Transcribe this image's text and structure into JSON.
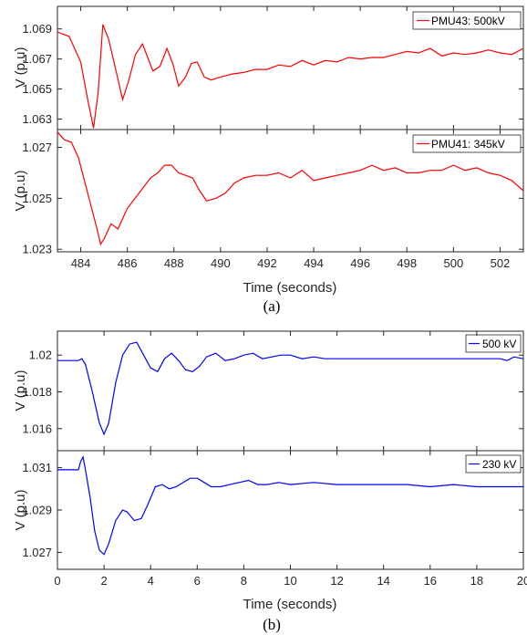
{
  "figure_a": {
    "panel_label": "(a)",
    "xlabel": "Time (seconds)",
    "xticks": [
      "484",
      "486",
      "488",
      "490",
      "492",
      "494",
      "496",
      "498",
      "500",
      "502"
    ]
  },
  "figure_b": {
    "panel_label": "(b)",
    "xlabel": "Time (seconds)",
    "xticks": [
      "0",
      "2",
      "4",
      "6",
      "8",
      "10",
      "12",
      "14",
      "16",
      "18",
      "20"
    ]
  },
  "colors": {
    "series_a": "#ff0000",
    "series_b": "#0000ff",
    "axis": "#262626"
  },
  "chart_data": [
    {
      "type": "line",
      "legend": "top-right",
      "grid": false,
      "xlabel": "",
      "ylabel": "V (p.u)",
      "xlim": [
        483,
        503
      ],
      "ylim": [
        1.0623,
        1.0705
      ],
      "yticks": [
        "1.069",
        "1.067",
        "1.065",
        "1.063"
      ],
      "series": [
        {
          "name": "PMU43: 500kV",
          "x": [
            483.0,
            483.5,
            484.0,
            484.3,
            484.55,
            484.75,
            484.95,
            485.2,
            485.5,
            485.8,
            486.05,
            486.35,
            486.65,
            486.9,
            487.1,
            487.4,
            487.7,
            487.95,
            488.2,
            488.5,
            488.75,
            489.0,
            489.3,
            489.6,
            490.0,
            490.5,
            491.0,
            491.5,
            492.0,
            492.5,
            493.0,
            493.5,
            494.0,
            494.5,
            495.0,
            495.5,
            496.0,
            496.5,
            497.0,
            497.5,
            498.0,
            498.5,
            499.0,
            499.5,
            500.0,
            500.5,
            501.0,
            501.5,
            502.0,
            502.5,
            503.0
          ],
          "y": [
            1.0688,
            1.0685,
            1.0668,
            1.0643,
            1.0624,
            1.0648,
            1.0693,
            1.0683,
            1.0663,
            1.0643,
            1.0655,
            1.0673,
            1.068,
            1.067,
            1.0662,
            1.0665,
            1.0677,
            1.0667,
            1.0652,
            1.0658,
            1.0667,
            1.0668,
            1.0658,
            1.0656,
            1.0658,
            1.066,
            1.0661,
            1.0663,
            1.0663,
            1.0666,
            1.0665,
            1.0669,
            1.0666,
            1.0669,
            1.0668,
            1.0671,
            1.067,
            1.0671,
            1.0671,
            1.0673,
            1.0675,
            1.0674,
            1.0677,
            1.0672,
            1.0674,
            1.0673,
            1.0674,
            1.0676,
            1.0674,
            1.0673,
            1.0677
          ]
        }
      ]
    },
    {
      "type": "line",
      "legend": "top-right",
      "grid": false,
      "xlabel": "Time (seconds)",
      "ylabel": "V (p.u)",
      "xlim": [
        483,
        503
      ],
      "ylim": [
        1.0229,
        1.0277
      ],
      "yticks": [
        "1.027",
        "1.025",
        "1.023"
      ],
      "series": [
        {
          "name": "PMU41: 345kV",
          "x": [
            483.0,
            483.3,
            483.6,
            483.9,
            484.1,
            484.3,
            484.5,
            484.7,
            484.85,
            485.0,
            485.3,
            485.6,
            486.0,
            486.5,
            487.0,
            487.3,
            487.6,
            487.9,
            488.2,
            488.5,
            488.8,
            489.1,
            489.4,
            489.8,
            490.2,
            490.6,
            491.0,
            491.5,
            492.0,
            492.5,
            493.0,
            493.5,
            494.0,
            494.5,
            495.0,
            495.5,
            496.0,
            496.5,
            497.0,
            497.5,
            498.0,
            498.5,
            499.0,
            499.5,
            500.0,
            500.5,
            501.0,
            501.5,
            502.0,
            502.5,
            503.0
          ],
          "y": [
            1.0276,
            1.0273,
            1.0272,
            1.0266,
            1.0259,
            1.0252,
            1.0245,
            1.0238,
            1.0232,
            1.0234,
            1.024,
            1.0238,
            1.0246,
            1.0252,
            1.0258,
            1.026,
            1.0263,
            1.0263,
            1.026,
            1.0259,
            1.0258,
            1.0253,
            1.0249,
            1.025,
            1.0252,
            1.0256,
            1.0258,
            1.0259,
            1.0259,
            1.026,
            1.0258,
            1.0261,
            1.0257,
            1.0258,
            1.0259,
            1.026,
            1.0261,
            1.0263,
            1.0261,
            1.0262,
            1.026,
            1.026,
            1.0261,
            1.0261,
            1.0263,
            1.0261,
            1.0262,
            1.026,
            1.0259,
            1.0257,
            1.0253
          ]
        }
      ]
    },
    {
      "type": "line",
      "legend": "top-right",
      "grid": false,
      "xlabel": "",
      "ylabel": "V (p.u)",
      "xlim": [
        0,
        20
      ],
      "ylim": [
        1.0148,
        1.0213
      ],
      "yticks": [
        "1.02",
        "1.018",
        "1.016"
      ],
      "series": [
        {
          "name": "500 kV",
          "x": [
            0,
            0.9,
            1.05,
            1.2,
            1.5,
            1.8,
            2.0,
            2.2,
            2.5,
            2.8,
            3.1,
            3.4,
            3.7,
            4.0,
            4.3,
            4.6,
            4.9,
            5.2,
            5.5,
            5.8,
            6.1,
            6.4,
            6.8,
            7.2,
            7.6,
            8.0,
            8.4,
            8.8,
            9.2,
            9.6,
            10.0,
            10.5,
            11.0,
            11.5,
            12.0,
            14.0,
            16.0,
            18.0,
            19.0,
            19.3,
            19.6,
            20.0
          ],
          "y": [
            1.0197,
            1.0197,
            1.0198,
            1.0195,
            1.018,
            1.0163,
            1.0157,
            1.0163,
            1.0185,
            1.02,
            1.0206,
            1.0207,
            1.02,
            1.0193,
            1.0191,
            1.0198,
            1.0201,
            1.0197,
            1.0192,
            1.0191,
            1.0194,
            1.0199,
            1.0201,
            1.0197,
            1.0198,
            1.02,
            1.0201,
            1.0198,
            1.0199,
            1.02,
            1.02,
            1.0198,
            1.0199,
            1.0198,
            1.0198,
            1.0198,
            1.0198,
            1.0198,
            1.0198,
            1.0197,
            1.0199,
            1.0198
          ]
        }
      ]
    },
    {
      "type": "line",
      "legend": "top-right",
      "grid": false,
      "xlabel": "Time (seconds)",
      "ylabel": "V (p.u)",
      "xlim": [
        0,
        20
      ],
      "ylim": [
        1.0262,
        1.0318
      ],
      "yticks": [
        "1.031",
        "1.029",
        "1.027"
      ],
      "series": [
        {
          "name": "230 kV",
          "x": [
            0,
            0.9,
            1.0,
            1.1,
            1.2,
            1.4,
            1.6,
            1.8,
            2.0,
            2.2,
            2.5,
            2.8,
            3.0,
            3.3,
            3.6,
            3.9,
            4.2,
            4.5,
            4.8,
            5.1,
            5.4,
            5.7,
            6.0,
            6.3,
            6.6,
            7.0,
            7.4,
            7.8,
            8.2,
            8.6,
            9.0,
            9.5,
            10.0,
            11.0,
            12.0,
            14.0,
            15.0,
            16.0,
            17.0,
            18.0,
            20.0
          ],
          "y": [
            1.0309,
            1.0309,
            1.0313,
            1.0315,
            1.0309,
            1.0296,
            1.028,
            1.0271,
            1.0269,
            1.0274,
            1.0285,
            1.029,
            1.0289,
            1.0285,
            1.0286,
            1.0293,
            1.0301,
            1.0302,
            1.03,
            1.0301,
            1.0303,
            1.0305,
            1.0305,
            1.0303,
            1.0301,
            1.0301,
            1.0302,
            1.0303,
            1.0304,
            1.0302,
            1.0302,
            1.0303,
            1.0302,
            1.0303,
            1.0302,
            1.0302,
            1.0302,
            1.0301,
            1.0302,
            1.0301,
            1.0301
          ]
        }
      ]
    }
  ]
}
